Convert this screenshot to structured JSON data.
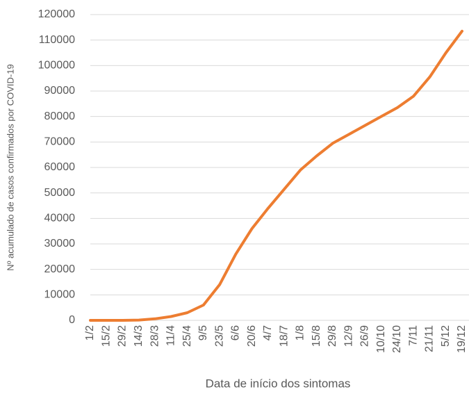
{
  "chart_data": {
    "type": "line",
    "x_label": "Data de início dos sintomas",
    "y_label": "Nº acumulado de casos confirmados por COVID-19",
    "categories": [
      "1/2",
      "15/2",
      "29/2",
      "14/3",
      "28/3",
      "11/4",
      "25/4",
      "9/5",
      "23/5",
      "6/6",
      "20/6",
      "4/7",
      "18/7",
      "1/8",
      "15/8",
      "29/8",
      "12/9",
      "26/9",
      "10/10",
      "24/10",
      "7/11",
      "21/11",
      "5/12",
      "19/12"
    ],
    "series": [
      {
        "color": "#ed7d31",
        "values": [
          0,
          0,
          0,
          100,
          600,
          1500,
          3000,
          6000,
          14000,
          26000,
          36000,
          44000,
          51500,
          59000,
          64500,
          69500,
          73000,
          76500,
          80000,
          83500,
          88000,
          95500,
          105000,
          113500
        ]
      }
    ],
    "ylim": [
      0,
      120000
    ],
    "yticks": [
      0,
      10000,
      20000,
      30000,
      40000,
      50000,
      60000,
      70000,
      80000,
      90000,
      100000,
      110000,
      120000
    ],
    "grid": true
  }
}
